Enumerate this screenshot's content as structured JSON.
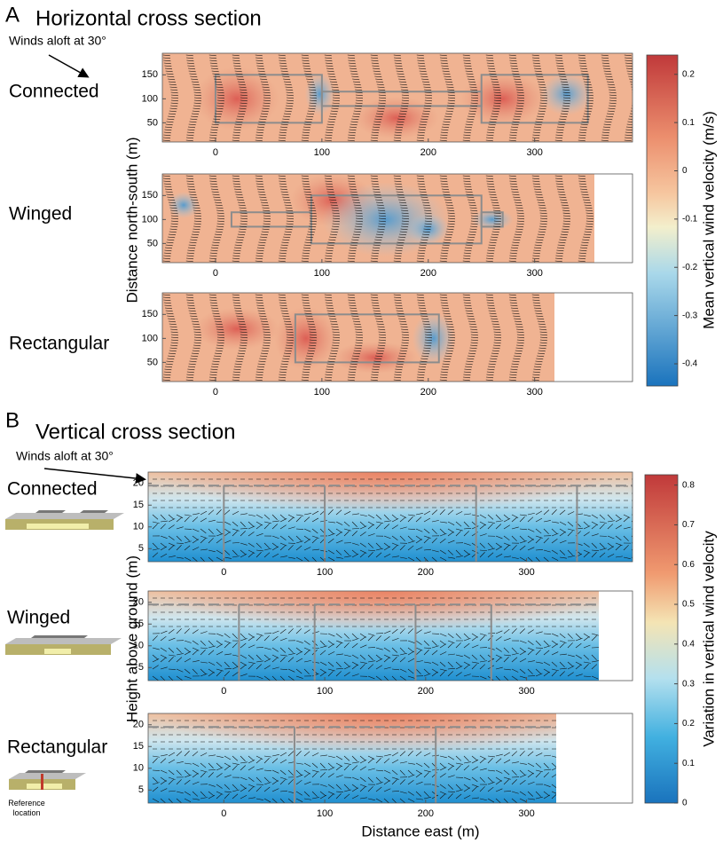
{
  "chart_data": [
    {
      "type": "heatmap",
      "letter": "A",
      "title": "Horizontal cross section",
      "annotation": "Winds aloft at 30°",
      "y_label": "Distance north-south (m)",
      "colorbar": {
        "label": "Mean vertical wind velocity (m/s)",
        "lim": [
          -0.446,
          0.24
        ],
        "ticks": [
          0.2,
          0.1,
          0,
          -0.1,
          -0.2,
          -0.3,
          -0.4
        ]
      },
      "subplots": [
        {
          "label": "Connected",
          "xlim": [
            -50,
            392
          ],
          "ylim": [
            10,
            195
          ],
          "xticks": [
            0,
            100,
            200,
            300
          ],
          "yticks": [
            50,
            100,
            150
          ]
        },
        {
          "label": "Winged",
          "xlim": [
            -50,
            392
          ],
          "ylim": [
            10,
            195
          ],
          "xticks": [
            0,
            100,
            200,
            300
          ],
          "yticks": [
            50,
            100,
            150
          ]
        },
        {
          "label": "Rectangular",
          "xlim": [
            -50,
            392
          ],
          "ylim": [
            10,
            195
          ],
          "xticks": [
            0,
            100,
            200,
            300
          ],
          "yticks": [
            50,
            100,
            150
          ]
        }
      ]
    },
    {
      "type": "heatmap",
      "letter": "B",
      "title": "Vertical cross section",
      "annotation": "Winds aloft at 30°",
      "y_label": "Height above ground (m)",
      "x_label": "Distance east (m)",
      "note": "Reference location",
      "colorbar": {
        "label": "Variation in vertical wind velocity",
        "lim": [
          0,
          0.826
        ],
        "ticks": [
          0.8,
          0.7,
          0.6,
          0.5,
          0.4,
          0.3,
          0.2,
          0.1,
          0
        ]
      },
      "subplots": [
        {
          "label": "Connected",
          "xlim": [
            -75,
            405
          ],
          "ylim": [
            2,
            22.6
          ],
          "xticks": [
            0,
            100,
            200,
            300
          ],
          "yticks": [
            5,
            10,
            15,
            20
          ]
        },
        {
          "label": "Winged",
          "xlim": [
            -75,
            405
          ],
          "ylim": [
            2,
            22.6
          ],
          "xticks": [
            0,
            100,
            200,
            300
          ],
          "yticks": [
            5,
            10,
            15,
            20
          ]
        },
        {
          "label": "Rectangular",
          "xlim": [
            -75,
            405
          ],
          "ylim": [
            2,
            22.6
          ],
          "xticks": [
            0,
            100,
            200,
            300
          ],
          "yticks": [
            5,
            10,
            15,
            20
          ]
        }
      ]
    }
  ]
}
